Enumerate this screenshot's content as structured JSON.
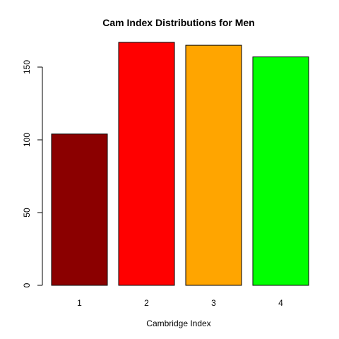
{
  "chart_data": {
    "type": "bar",
    "title": "Cam Index Distributions for Men",
    "xlabel": "Cambridge Index",
    "ylabel": "",
    "categories": [
      "1",
      "2",
      "3",
      "4"
    ],
    "values": [
      104,
      167,
      165,
      157
    ],
    "colors": [
      "#8b0000",
      "#ff0000",
      "#ffa500",
      "#00ff00"
    ],
    "ylim": [
      0,
      175
    ],
    "yticks": [
      0,
      50,
      100,
      150
    ],
    "grid": false,
    "legend": "none"
  }
}
